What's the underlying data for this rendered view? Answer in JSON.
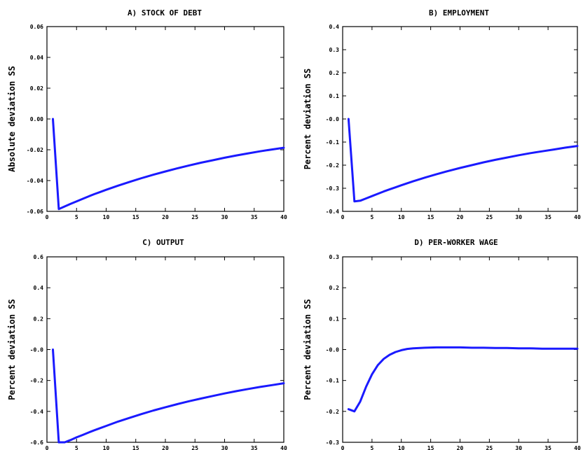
{
  "chart_data": [
    {
      "type": "line",
      "title": "A) STOCK OF DEBT",
      "xlabel": "",
      "ylabel": "Absolute deviation SS",
      "xlim": [
        0,
        40
      ],
      "ylim": [
        -0.06,
        0.06
      ],
      "xticks": [
        0,
        5,
        10,
        15,
        20,
        25,
        30,
        35,
        40
      ],
      "yticks": [
        -0.06,
        -0.04,
        -0.02,
        0.0,
        0.02,
        0.04,
        0.06
      ],
      "ytick_labels": [
        "-0.06",
        "-0.04",
        "-0.02",
        "0.00",
        "0.02",
        "0.04",
        "0.06"
      ],
      "color": "#1a1aff",
      "grid": false,
      "x": [
        1,
        2,
        3,
        4,
        5,
        6,
        7,
        8,
        9,
        10,
        12,
        14,
        16,
        18,
        20,
        22,
        24,
        26,
        28,
        30,
        32,
        34,
        36,
        38,
        40
      ],
      "y": [
        0.0,
        -0.0585,
        -0.0568,
        -0.0551,
        -0.0535,
        -0.0519,
        -0.0503,
        -0.0488,
        -0.0474,
        -0.046,
        -0.0433,
        -0.0408,
        -0.0384,
        -0.0362,
        -0.0341,
        -0.0321,
        -0.0302,
        -0.0284,
        -0.0268,
        -0.0252,
        -0.0237,
        -0.0223,
        -0.021,
        -0.0198,
        -0.0187
      ]
    },
    {
      "type": "line",
      "title": "B) EMPLOYMENT",
      "xlabel": "",
      "ylabel": "Percent deviation SS",
      "xlim": [
        0,
        40
      ],
      "ylim": [
        -0.4,
        0.4
      ],
      "xticks": [
        0,
        5,
        10,
        15,
        20,
        25,
        30,
        35,
        40
      ],
      "yticks": [
        -0.4,
        -0.3,
        -0.2,
        -0.1,
        0.0,
        0.1,
        0.2,
        0.3,
        0.4
      ],
      "ytick_labels": [
        "-0.4",
        "-0.3",
        "-0.2",
        "-0.1",
        "-0.0",
        "0.1",
        "0.2",
        "0.3",
        "0.4"
      ],
      "color": "#1a1aff",
      "grid": false,
      "x": [
        1,
        2,
        3,
        4,
        5,
        6,
        7,
        8,
        9,
        10,
        12,
        14,
        16,
        18,
        20,
        22,
        24,
        26,
        28,
        30,
        32,
        34,
        36,
        38,
        40
      ],
      "y": [
        0.0,
        -0.357,
        -0.354,
        -0.344,
        -0.334,
        -0.324,
        -0.314,
        -0.305,
        -0.296,
        -0.287,
        -0.27,
        -0.254,
        -0.239,
        -0.225,
        -0.212,
        -0.2,
        -0.188,
        -0.177,
        -0.167,
        -0.157,
        -0.148,
        -0.14,
        -0.132,
        -0.124,
        -0.117
      ]
    },
    {
      "type": "line",
      "title": "C) OUTPUT",
      "xlabel": "",
      "ylabel": "Percent deviation SS",
      "xlim": [
        0,
        40
      ],
      "ylim": [
        -0.6,
        0.6
      ],
      "xticks": [
        0,
        5,
        10,
        15,
        20,
        25,
        30,
        35,
        40
      ],
      "yticks": [
        -0.6,
        -0.4,
        -0.2,
        0.0,
        0.2,
        0.4,
        0.6
      ],
      "ytick_labels": [
        "-0.6",
        "-0.4",
        "-0.2",
        "-0.0",
        "0.2",
        "0.4",
        "0.6"
      ],
      "color": "#1a1aff",
      "grid": false,
      "x": [
        1,
        2,
        3,
        4,
        5,
        6,
        7,
        8,
        9,
        10,
        12,
        14,
        16,
        18,
        20,
        22,
        24,
        26,
        28,
        30,
        32,
        34,
        36,
        38,
        40
      ],
      "y": [
        0.0,
        -0.6,
        -0.6,
        -0.585,
        -0.568,
        -0.553,
        -0.537,
        -0.522,
        -0.508,
        -0.494,
        -0.466,
        -0.441,
        -0.417,
        -0.394,
        -0.373,
        -0.353,
        -0.334,
        -0.317,
        -0.3,
        -0.284,
        -0.269,
        -0.255,
        -0.242,
        -0.23,
        -0.218
      ]
    },
    {
      "type": "line",
      "title": "D) PER-WORKER WAGE",
      "xlabel": "",
      "ylabel": "Percent deviation SS",
      "xlim": [
        0,
        40
      ],
      "ylim": [
        -0.3,
        0.3
      ],
      "xticks": [
        0,
        5,
        10,
        15,
        20,
        25,
        30,
        35,
        40
      ],
      "yticks": [
        -0.3,
        -0.2,
        -0.1,
        0.0,
        0.1,
        0.2,
        0.3
      ],
      "ytick_labels": [
        "-0.3",
        "-0.2",
        "-0.1",
        "-0.0",
        "0.1",
        "0.2",
        "0.3"
      ],
      "color": "#1a1aff",
      "grid": false,
      "x": [
        1,
        2,
        3,
        4,
        5,
        6,
        7,
        8,
        9,
        10,
        11,
        12,
        14,
        16,
        18,
        20,
        22,
        24,
        26,
        28,
        30,
        32,
        34,
        36,
        38,
        40
      ],
      "y": [
        -0.193,
        -0.2,
        -0.168,
        -0.12,
        -0.08,
        -0.05,
        -0.03,
        -0.017,
        -0.008,
        -0.002,
        0.002,
        0.004,
        0.006,
        0.007,
        0.007,
        0.007,
        0.006,
        0.006,
        0.005,
        0.005,
        0.004,
        0.004,
        0.003,
        0.003,
        0.003,
        0.003
      ]
    }
  ]
}
